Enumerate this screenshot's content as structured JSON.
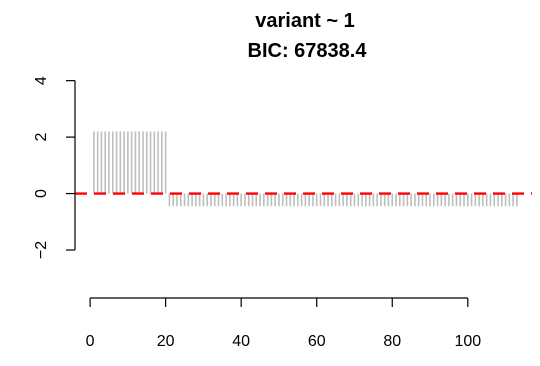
{
  "chart_data": {
    "type": "bar",
    "title": "variant ~ 1",
    "subtitle": "BIC:  67838.4",
    "xlabel": "",
    "ylabel": "",
    "x_ticks": [
      "0",
      "20",
      "40",
      "60",
      "80",
      "100"
    ],
    "y_ticks": [
      "−2",
      "0",
      "2",
      "4"
    ],
    "xlim": [
      -4,
      117
    ],
    "ylim": [
      -3.7,
      4.2
    ],
    "x": [
      1,
      2,
      3,
      4,
      5,
      6,
      7,
      8,
      9,
      10,
      11,
      12,
      13,
      14,
      15,
      16,
      17,
      18,
      19,
      20,
      21,
      22,
      23,
      24,
      25,
      26,
      27,
      28,
      29,
      30,
      31,
      32,
      33,
      34,
      35,
      36,
      37,
      38,
      39,
      40,
      41,
      42,
      43,
      44,
      45,
      46,
      47,
      48,
      49,
      50,
      51,
      52,
      53,
      54,
      55,
      56,
      57,
      58,
      59,
      60,
      61,
      62,
      63,
      64,
      65,
      66,
      67,
      68,
      69,
      70,
      71,
      72,
      73,
      74,
      75,
      76,
      77,
      78,
      79,
      80,
      81,
      82,
      83,
      84,
      85,
      86,
      87,
      88,
      89,
      90,
      91,
      92,
      93,
      94,
      95,
      96,
      97,
      98,
      99,
      100,
      101,
      102,
      103,
      104,
      105,
      106,
      107,
      108,
      109,
      110,
      111,
      112,
      113
    ],
    "values": [
      2.2,
      2.2,
      2.2,
      2.2,
      2.2,
      2.2,
      2.2,
      2.2,
      2.2,
      2.2,
      2.2,
      2.2,
      2.2,
      2.2,
      2.2,
      2.2,
      2.2,
      2.2,
      2.2,
      2.2,
      -0.45,
      -0.45,
      -0.45,
      -0.45,
      -0.45,
      -0.45,
      -0.45,
      -0.45,
      -0.45,
      -0.45,
      -0.45,
      -0.45,
      -0.45,
      -0.45,
      -0.45,
      -0.45,
      -0.45,
      -0.45,
      -0.45,
      -0.45,
      -0.45,
      -0.45,
      -0.45,
      -0.45,
      -0.45,
      -0.45,
      -0.45,
      -0.45,
      -0.45,
      -0.45,
      -0.45,
      -0.45,
      -0.45,
      -0.45,
      -0.45,
      -0.45,
      -0.45,
      -0.45,
      -0.45,
      -0.45,
      -0.45,
      -0.45,
      -0.45,
      -0.45,
      -0.45,
      -0.45,
      -0.45,
      -0.45,
      -0.45,
      -0.45,
      -0.45,
      -0.45,
      -0.45,
      -0.45,
      -0.45,
      -0.45,
      -0.45,
      -0.45,
      -0.45,
      -0.45,
      -0.45,
      -0.45,
      -0.45,
      -0.45,
      -0.45,
      -0.45,
      -0.45,
      -0.45,
      -0.45,
      -0.45,
      -0.45,
      -0.45,
      -0.45,
      -0.45,
      -0.45,
      -0.45,
      -0.45,
      -0.45,
      -0.45,
      -0.45,
      -0.45,
      -0.45,
      -0.45,
      -0.45,
      -0.45,
      -0.45,
      -0.45,
      -0.45,
      -0.45,
      -0.45,
      -0.45,
      -0.45,
      -0.45
    ],
    "reference_line": {
      "y": 0,
      "style": "dashed",
      "color": "#ff0000"
    },
    "bar_color": "#bebebe",
    "grid": false,
    "legend": "none"
  }
}
